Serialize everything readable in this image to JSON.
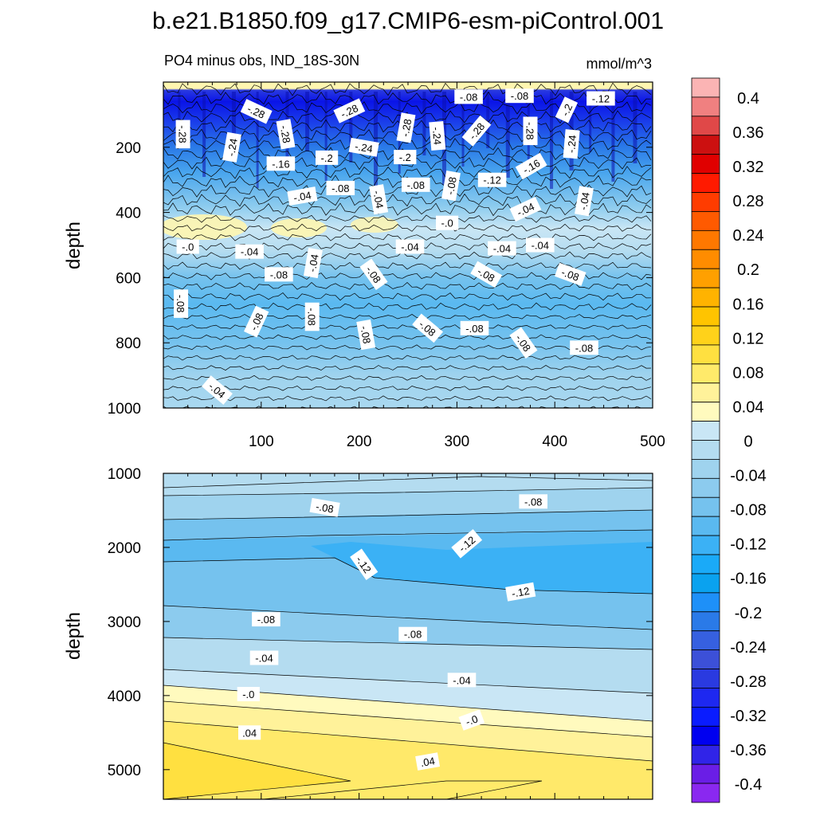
{
  "chart_data": {
    "type": "contour",
    "title": "b.e21.B1850.f09_g17.CMIP6-esm-piControl.001",
    "subtitle_left": "PO4 minus obs, IND_18S-30N",
    "subtitle_right": "mmol/m^3",
    "colorbar": {
      "levels": [
        "0.4",
        "0.36",
        "0.32",
        "0.28",
        "0.24",
        "0.2",
        "0.16",
        "0.12",
        "0.08",
        "0.04",
        "0",
        "-0.04",
        "-0.08",
        "-0.12",
        "-0.16",
        "-0.2",
        "-0.24",
        "-0.28",
        "-0.32",
        "-0.36",
        "-0.4"
      ],
      "colors": [
        "#fbb4b4",
        "#f08080",
        "#e04848",
        "#cc1010",
        "#e00000",
        "#ff1a00",
        "#ff3c00",
        "#ff5a00",
        "#ff7800",
        "#ff8c00",
        "#ffa000",
        "#ffb300",
        "#ffc400",
        "#ffd21a",
        "#ffe040",
        "#ffea6a",
        "#fff29a",
        "#fffabe",
        "#c9e6f5",
        "#b4dcf0",
        "#9fd3ee",
        "#8ccbee",
        "#75c2ee",
        "#5ab9f0",
        "#3bb1f5",
        "#1aaaf8",
        "#0aa2ef",
        "#1e90f8",
        "#2a7ae8",
        "#3660e0",
        "#3c50d8",
        "#2a3ae0",
        "#1e28f0",
        "#0a1cff",
        "#0000f0",
        "#3024e8",
        "#6a1ee6",
        "#8a28f0"
      ]
    },
    "panels": [
      {
        "name": "upper",
        "xlabel": "",
        "ylabel": "depth",
        "xlim": [
          0,
          500
        ],
        "ylim": [
          1000,
          0
        ],
        "xticks": [
          "100",
          "200",
          "300",
          "400",
          "500"
        ],
        "yticks": [
          "200",
          "400",
          "600",
          "800",
          "1000"
        ],
        "contour_labels": [
          {
            "text": "-.28",
            "x": 95,
            "y": 90,
            "angle": 25
          },
          {
            "text": "-.28",
            "x": 190,
            "y": 88,
            "angle": -25
          },
          {
            "text": "-.28",
            "x": 20,
            "y": 160,
            "angle": 90
          },
          {
            "text": "-.28",
            "x": 125,
            "y": 160,
            "angle": 80
          },
          {
            "text": "-.28",
            "x": 248,
            "y": 140,
            "angle": -80
          },
          {
            "text": "-.28",
            "x": 320,
            "y": 150,
            "angle": -50
          },
          {
            "text": "-.28",
            "x": 375,
            "y": 150,
            "angle": 90
          },
          {
            "text": "-.2",
            "x": 412,
            "y": 85,
            "angle": -65
          },
          {
            "text": "-.08",
            "x": 312,
            "y": 45,
            "angle": 0
          },
          {
            "text": "-.08",
            "x": 364,
            "y": 42,
            "angle": 0
          },
          {
            "text": "-.12",
            "x": 447,
            "y": 50,
            "angle": 0
          },
          {
            "text": "-.24",
            "x": 70,
            "y": 200,
            "angle": -80
          },
          {
            "text": "-.24",
            "x": 205,
            "y": 200,
            "angle": 10
          },
          {
            "text": "-.24",
            "x": 280,
            "y": 165,
            "angle": 85
          },
          {
            "text": "-.24",
            "x": 417,
            "y": 190,
            "angle": -85
          },
          {
            "text": "-.16",
            "x": 120,
            "y": 250,
            "angle": 0
          },
          {
            "text": "-.2",
            "x": 167,
            "y": 232,
            "angle": 0
          },
          {
            "text": "-.2",
            "x": 247,
            "y": 230,
            "angle": 0
          },
          {
            "text": "-.16",
            "x": 376,
            "y": 258,
            "angle": -30
          },
          {
            "text": "-.12",
            "x": 336,
            "y": 300,
            "angle": 0
          },
          {
            "text": "-.08",
            "x": 181,
            "y": 325,
            "angle": 0
          },
          {
            "text": "-.08",
            "x": 258,
            "y": 315,
            "angle": 0
          },
          {
            "text": "-.08",
            "x": 294,
            "y": 318,
            "angle": -80
          },
          {
            "text": "-.04",
            "x": 142,
            "y": 350,
            "angle": -10
          },
          {
            "text": "-.04",
            "x": 220,
            "y": 360,
            "angle": 80
          },
          {
            "text": "-.04",
            "x": 370,
            "y": 390,
            "angle": -25
          },
          {
            "text": "-.04",
            "x": 430,
            "y": 365,
            "angle": -80
          },
          {
            "text": "-.0",
            "x": 290,
            "y": 432,
            "angle": 0
          },
          {
            "text": "-.0",
            "x": 25,
            "y": 505,
            "angle": 0
          },
          {
            "text": "-.04",
            "x": 88,
            "y": 520,
            "angle": 0
          },
          {
            "text": "-.04",
            "x": 153,
            "y": 555,
            "angle": -80
          },
          {
            "text": "-.04",
            "x": 252,
            "y": 505,
            "angle": 0
          },
          {
            "text": "-.04",
            "x": 346,
            "y": 510,
            "angle": 0
          },
          {
            "text": "-.04",
            "x": 385,
            "y": 500,
            "angle": 0
          },
          {
            "text": "-.08",
            "x": 118,
            "y": 590,
            "angle": 0
          },
          {
            "text": "-.08",
            "x": 215,
            "y": 590,
            "angle": 55
          },
          {
            "text": "-.08",
            "x": 330,
            "y": 590,
            "angle": 30
          },
          {
            "text": "-.08",
            "x": 416,
            "y": 590,
            "angle": 20
          },
          {
            "text": "-.08",
            "x": 18,
            "y": 680,
            "angle": 90
          },
          {
            "text": "-.08",
            "x": 95,
            "y": 735,
            "angle": -65
          },
          {
            "text": "-.08",
            "x": 152,
            "y": 720,
            "angle": 90
          },
          {
            "text": "-.08",
            "x": 207,
            "y": 775,
            "angle": 80
          },
          {
            "text": "-.08",
            "x": 270,
            "y": 755,
            "angle": 40
          },
          {
            "text": "-.08",
            "x": 318,
            "y": 755,
            "angle": 0
          },
          {
            "text": "-.08",
            "x": 368,
            "y": 800,
            "angle": 55
          },
          {
            "text": "-.08",
            "x": 430,
            "y": 815,
            "angle": 0
          },
          {
            "text": "-.04",
            "x": 55,
            "y": 945,
            "angle": 40
          }
        ]
      },
      {
        "name": "lower",
        "xlabel": "",
        "ylabel": "depth",
        "xlim": [
          0,
          500
        ],
        "ylim": [
          5400,
          1000
        ],
        "xticks": [],
        "yticks": [
          "1000",
          "2000",
          "3000",
          "4000",
          "5000"
        ],
        "contour_labels": [
          {
            "text": "-.08",
            "x": 165,
            "y": 1460,
            "angle": 10
          },
          {
            "text": "-.08",
            "x": 378,
            "y": 1380,
            "angle": 0
          },
          {
            "text": "-.12",
            "x": 310,
            "y": 1950,
            "angle": -40
          },
          {
            "text": "-.12",
            "x": 205,
            "y": 2230,
            "angle": 55
          },
          {
            "text": "-.12",
            "x": 365,
            "y": 2600,
            "angle": -10
          },
          {
            "text": "-.08",
            "x": 105,
            "y": 2970,
            "angle": 0
          },
          {
            "text": "-.08",
            "x": 255,
            "y": 3170,
            "angle": 0
          },
          {
            "text": "-.04",
            "x": 103,
            "y": 3490,
            "angle": 0
          },
          {
            "text": "-.04",
            "x": 305,
            "y": 3790,
            "angle": 0
          },
          {
            "text": "-.0",
            "x": 87,
            "y": 3980,
            "angle": 0
          },
          {
            "text": "-.0",
            "x": 315,
            "y": 4330,
            "angle": -20
          },
          {
            "text": ".04",
            "x": 88,
            "y": 4500,
            "angle": 0
          },
          {
            "text": ".04",
            "x": 270,
            "y": 4890,
            "angle": -10
          }
        ]
      }
    ]
  }
}
